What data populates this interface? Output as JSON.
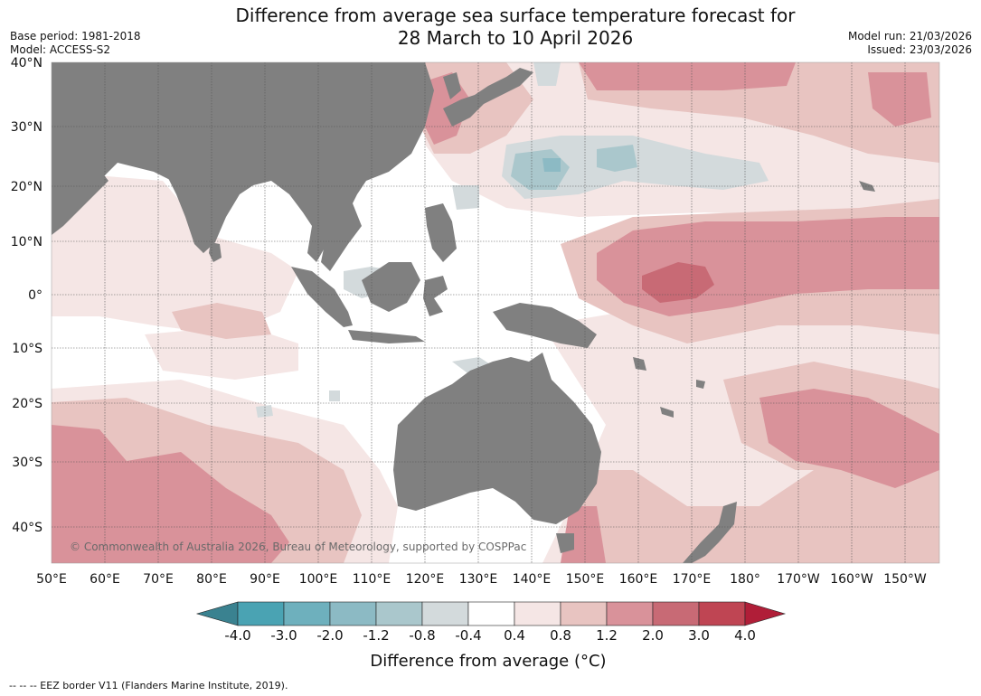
{
  "title_line1": "Difference from average sea surface temperature forecast for",
  "title_line2": "28 March to 10 April 2026",
  "base_period": "Base period: 1981-2018",
  "model": "Model: ACCESS-S2",
  "model_run": "Model run: 21/03/2026",
  "issued": "Issued: 23/03/2026",
  "copyright": "© Commonwealth of Australia 2026, Bureau of Meteorology, supported by COSPPac",
  "eez_note": "--  --  -- EEZ border V11 (Flanders Marine Institute, 2019).",
  "lat_labels": [
    "40°N",
    "30°N",
    "20°N",
    "10°N",
    "0°",
    "10°S",
    "20°S",
    "30°S",
    "40°S"
  ],
  "lon_labels": [
    "50°E",
    "60°E",
    "70°E",
    "80°E",
    "90°E",
    "100°E",
    "110°E",
    "120°E",
    "130°E",
    "140°E",
    "150°E",
    "160°E",
    "170°E",
    "180°",
    "170°W",
    "160°W",
    "150°W"
  ],
  "colorbar": {
    "title": "Difference from average (°C)",
    "ticks": [
      "-4.0",
      "-3.0",
      "-2.0",
      "-1.2",
      "-0.8",
      "-0.4",
      "0.4",
      "0.8",
      "1.2",
      "2.0",
      "3.0",
      "4.0"
    ],
    "colors": [
      "#4aa3b3",
      "#6eb0bd",
      "#8cbac4",
      "#aac7cc",
      "#d3dadc",
      "#ffffff",
      "#f5e6e5",
      "#e8c4c1",
      "#d9929a",
      "#c86a75",
      "#bf4553"
    ],
    "under_color": "#3a8290",
    "over_color": "#b01e38"
  },
  "palette": {
    "land": "#808080",
    "warm1": "#f5e6e5",
    "warm2": "#e8c4c1",
    "warm3": "#d9929a",
    "warm4": "#c86a75",
    "cool1": "#d3dadc",
    "cool2": "#aac7cc",
    "cool3": "#8cbac4"
  }
}
